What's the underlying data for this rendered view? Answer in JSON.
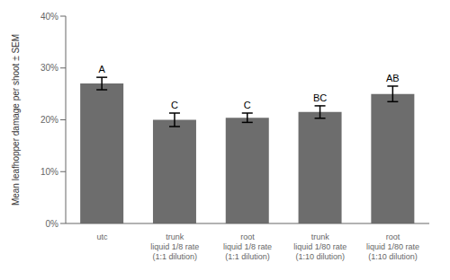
{
  "chart_data": {
    "type": "bar",
    "categories": [
      "utc",
      "trunk\nliquid 1/8 rate\n(1:1 dilution)",
      "root\nliquid 1/8 rate\n(1:1 dilution)",
      "trunk\nliquid 1/80 rate\n(1:10 dilution)",
      "root\nliquid 1/80 rate\n(1:10 dilution)"
    ],
    "values": [
      27.0,
      20.0,
      20.4,
      21.5,
      25.0
    ],
    "errors": [
      1.2,
      1.3,
      0.9,
      1.2,
      1.5
    ],
    "letters": [
      "A",
      "C",
      "C",
      "BC",
      "AB"
    ],
    "color": "#6d6d6d",
    "ylabel": "Mean leafhopper damage per shoot ± SEM",
    "ylim": [
      0,
      40
    ],
    "yticks": [
      {
        "value": 0,
        "label": "0%"
      },
      {
        "value": 10,
        "label": "10%"
      },
      {
        "value": 20,
        "label": "20%"
      },
      {
        "value": 30,
        "label": "30%"
      },
      {
        "value": 40,
        "label": "40%"
      }
    ],
    "grid": false
  }
}
